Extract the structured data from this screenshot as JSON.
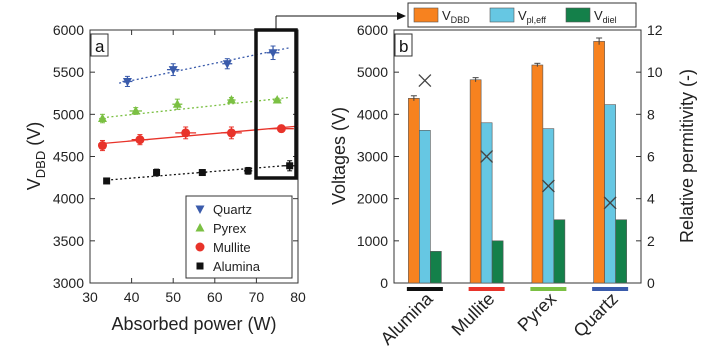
{
  "chart_data": [
    {
      "type": "scatter",
      "panel_label": "a",
      "xlabel": "Absorbed power (W)",
      "ylabel_main": "V",
      "ylabel_sub": "DBD",
      "ylabel_tail": " (V)",
      "xlim": [
        30,
        80
      ],
      "ylim": [
        3000,
        6000
      ],
      "xticks": [
        "30",
        "40",
        "50",
        "60",
        "70",
        "80"
      ],
      "yticks": [
        "3000",
        "3500",
        "4000",
        "4500",
        "5000",
        "5500",
        "6000"
      ],
      "legend_position": "bottom-right",
      "series": [
        {
          "name": "Quartz",
          "color": "#3a5bab",
          "marker": "triangle-down",
          "fit": "dotted",
          "points": [
            {
              "x": 39,
              "y": 5390,
              "xerr": 1.2,
              "yerr": 60
            },
            {
              "x": 50,
              "y": 5530,
              "xerr": 1.5,
              "yerr": 70
            },
            {
              "x": 63,
              "y": 5600,
              "xerr": 1.2,
              "yerr": 60
            },
            {
              "x": 74,
              "y": 5730,
              "xerr": 1.5,
              "yerr": 80
            }
          ],
          "fit_line": [
            [
              37,
              5370
            ],
            [
              78,
              5790
            ]
          ]
        },
        {
          "name": "Pyrex",
          "color": "#7bc043",
          "marker": "triangle-up",
          "fit": "dotted",
          "points": [
            {
              "x": 33,
              "y": 4950,
              "xerr": 0.8,
              "yerr": 50
            },
            {
              "x": 41,
              "y": 5040,
              "xerr": 1.5,
              "yerr": 40
            },
            {
              "x": 51,
              "y": 5120,
              "xerr": 1.2,
              "yerr": 60
            },
            {
              "x": 64,
              "y": 5170,
              "xerr": 1.0,
              "yerr": 30
            },
            {
              "x": 75,
              "y": 5170,
              "xerr": 1.0,
              "yerr": 20
            }
          ],
          "fit_line": [
            [
              33,
              4960
            ],
            [
              78,
              5200
            ]
          ]
        },
        {
          "name": "Mullite",
          "color": "#e8332a",
          "marker": "circle",
          "fit": "solid",
          "points": [
            {
              "x": 33,
              "y": 4630,
              "xerr": 1.0,
              "yerr": 60
            },
            {
              "x": 42,
              "y": 4700,
              "xerr": 2.0,
              "yerr": 60
            },
            {
              "x": 53,
              "y": 4780,
              "xerr": 2.5,
              "yerr": 70
            },
            {
              "x": 64,
              "y": 4780,
              "xerr": 2.5,
              "yerr": 70
            },
            {
              "x": 76,
              "y": 4830,
              "xerr": 3.0,
              "yerr": 40
            }
          ],
          "fit_line": [
            [
              32,
              4650
            ],
            [
              80,
              4860
            ]
          ]
        },
        {
          "name": "Alumina",
          "color": "#111111",
          "marker": "square",
          "fit": "dotted",
          "points": [
            {
              "x": 34,
              "y": 4210,
              "xerr": 0.5,
              "yerr": 20
            },
            {
              "x": 46,
              "y": 4310,
              "xerr": 0.8,
              "yerr": 40
            },
            {
              "x": 57,
              "y": 4310,
              "xerr": 1.0,
              "yerr": 30
            },
            {
              "x": 68,
              "y": 4330,
              "xerr": 1.0,
              "yerr": 40
            },
            {
              "x": 78,
              "y": 4390,
              "xerr": 1.5,
              "yerr": 60
            }
          ],
          "fit_line": [
            [
              34,
              4220
            ],
            [
              79,
              4400
            ]
          ]
        }
      ]
    },
    {
      "type": "bar",
      "panel_label": "b",
      "categories": [
        "Alumina",
        "Mullite",
        "Pyrex",
        "Quartz"
      ],
      "category_colors": [
        "#111111",
        "#e8332a",
        "#7bc043",
        "#3a5bab"
      ],
      "ylabel": "Voltages (V)",
      "y2label": "Relative permitivity (-)",
      "ylim": [
        0,
        6000
      ],
      "y2lim": [
        0,
        12
      ],
      "yticks": [
        "0",
        "1000",
        "2000",
        "3000",
        "4000",
        "5000",
        "6000"
      ],
      "y2ticks": [
        "0",
        "2",
        "4",
        "6",
        "8",
        "10",
        "12"
      ],
      "legend_position": "top",
      "series": [
        {
          "name_main": "V",
          "name_sub": "DBD",
          "color": "#f7821f",
          "values": [
            4380,
            4820,
            5170,
            5730
          ],
          "errors": [
            60,
            50,
            40,
            80
          ]
        },
        {
          "name_main": "V",
          "name_sub": "pl,eff",
          "color": "#66c7e3",
          "values": [
            3620,
            3800,
            3660,
            4230
          ]
        },
        {
          "name_main": "V",
          "name_sub": "diel",
          "color": "#14804a",
          "values": [
            750,
            1000,
            1500,
            1500
          ]
        }
      ],
      "permittivity": {
        "marker": "x",
        "values": [
          9.6,
          6.0,
          4.6,
          3.8
        ]
      }
    }
  ]
}
